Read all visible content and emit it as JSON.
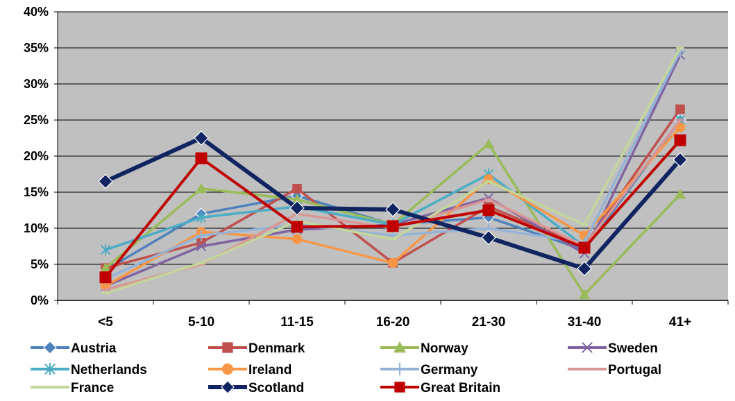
{
  "chart_data": {
    "type": "line",
    "categories": [
      "<5",
      "5-10",
      "11-15",
      "16-20",
      "21-30",
      "31-40",
      "41+"
    ],
    "ylim": [
      0,
      40
    ],
    "yticks": [
      "0%",
      "5%",
      "10%",
      "15%",
      "20%",
      "25%",
      "30%",
      "35%",
      "40%"
    ],
    "grid": true,
    "legend_position": "bottom",
    "plot_background": "#c0c0c0",
    "series": [
      {
        "name": "Austria",
        "color": "#4f81bd",
        "marker": "diamond",
        "values": [
          4.2,
          12.0,
          14.5,
          10.5,
          11.5,
          7.0,
          25.0
        ]
      },
      {
        "name": "Denmark",
        "color": "#c0504d",
        "marker": "square",
        "values": [
          4.5,
          8.0,
          15.5,
          5.2,
          13.0,
          7.5,
          26.5
        ]
      },
      {
        "name": "Norway",
        "color": "#9bbb59",
        "marker": "triangle",
        "values": [
          4.5,
          15.5,
          14.0,
          10.5,
          21.7,
          0.8,
          14.7
        ]
      },
      {
        "name": "Sweden",
        "color": "#8064a2",
        "marker": "x",
        "values": [
          2.0,
          7.5,
          9.8,
          10.5,
          14.2,
          6.5,
          34.0
        ]
      },
      {
        "name": "Netherlands",
        "color": "#4bacc6",
        "marker": "star",
        "values": [
          7.0,
          11.5,
          13.0,
          10.5,
          17.5,
          7.5,
          25.0
        ]
      },
      {
        "name": "Ireland",
        "color": "#f79646",
        "marker": "circle",
        "values": [
          2.0,
          9.5,
          8.5,
          5.2,
          16.8,
          9.0,
          24.0
        ]
      },
      {
        "name": "Germany",
        "color": "#95b3d7",
        "marker": "plus",
        "values": [
          3.0,
          9.0,
          10.5,
          9.0,
          10.0,
          8.0,
          34.5
        ]
      },
      {
        "name": "Portugal",
        "color": "#d99694",
        "marker": "dash",
        "values": [
          1.5,
          5.0,
          12.0,
          10.0,
          14.0,
          7.5,
          25.0
        ]
      },
      {
        "name": "France",
        "color": "#c3d69b",
        "marker": "dash",
        "values": [
          1.0,
          5.2,
          11.0,
          8.5,
          16.5,
          10.5,
          35.0
        ]
      },
      {
        "name": "Scotland",
        "color": "#0f2461",
        "marker": "diamond",
        "values": [
          16.5,
          22.5,
          12.8,
          12.6,
          8.7,
          4.4,
          19.5
        ]
      },
      {
        "name": "Great Britain",
        "color": "#c00000",
        "marker": "square",
        "values": [
          3.2,
          19.7,
          10.2,
          10.3,
          12.5,
          7.3,
          22.2
        ]
      }
    ]
  }
}
